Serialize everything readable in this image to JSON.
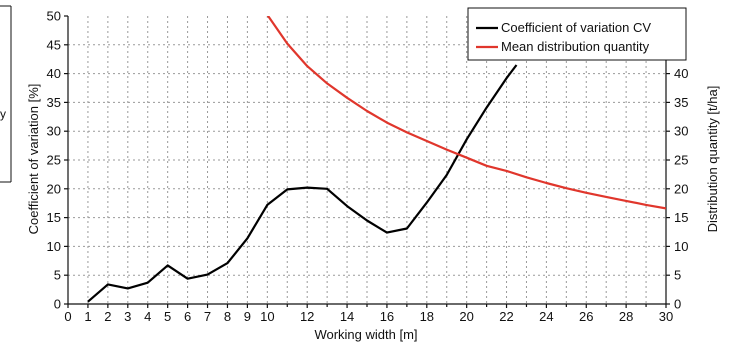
{
  "chart_data": {
    "type": "line",
    "title": "",
    "xlabel": "Working width [m]",
    "ylabel": "Coefficient of variation [%]",
    "y2label": "Distribution quantity [t/ha]",
    "xlim": [
      0,
      30
    ],
    "ylim": [
      0,
      50
    ],
    "y2lim": [
      0,
      50
    ],
    "grid": true,
    "legend_position": "top-right",
    "x_tick_labels": [
      "0",
      "1",
      "2",
      "3",
      "4",
      "5",
      "6",
      "7",
      "8",
      "9",
      "10",
      "12",
      "14",
      "16",
      "18",
      "20",
      "22",
      "24",
      "26",
      "28",
      "30"
    ],
    "x_tick_values": [
      0,
      1,
      2,
      3,
      4,
      5,
      6,
      7,
      8,
      9,
      10,
      12,
      14,
      16,
      18,
      20,
      22,
      24,
      26,
      28,
      30
    ],
    "y_tick_labels": [
      "0",
      "5",
      "10",
      "15",
      "20",
      "25",
      "30",
      "35",
      "40",
      "45",
      "50"
    ],
    "y_tick_values": [
      0,
      5,
      10,
      15,
      20,
      25,
      30,
      35,
      40,
      45,
      50
    ],
    "y2_tick_labels": [
      "0",
      "5",
      "10",
      "15",
      "20",
      "25",
      "30",
      "35",
      "40"
    ],
    "y2_tick_values": [
      0,
      5,
      10,
      15,
      20,
      25,
      30,
      35,
      40
    ],
    "series": [
      {
        "name": "Coefficient of variation CV",
        "color": "#000000",
        "axis": "left",
        "x": [
          1,
          2,
          3,
          4,
          5,
          6,
          7,
          8,
          9,
          10,
          11,
          12,
          13,
          14,
          15,
          16,
          17,
          18,
          19,
          20,
          21,
          22,
          22.5
        ],
        "y": [
          0.4,
          3.4,
          2.7,
          3.7,
          6.7,
          4.4,
          5.1,
          7.1,
          11.4,
          17.2,
          19.9,
          20.2,
          20.0,
          17.0,
          14.5,
          12.4,
          13.1,
          17.6,
          22.4,
          28.6,
          34.1,
          39.2,
          41.5
        ]
      },
      {
        "name": "Mean distribution quantity",
        "color": "#e0362c",
        "axis": "right",
        "x": [
          10,
          11,
          12,
          13,
          14,
          15,
          16,
          17,
          18,
          19,
          20,
          21,
          22,
          23,
          24,
          25,
          26,
          27,
          28,
          29,
          30
        ],
        "y": [
          50.2,
          45.2,
          41.3,
          38.3,
          35.8,
          33.5,
          31.5,
          29.8,
          28.3,
          26.8,
          25.4,
          24.0,
          23.1,
          22.0,
          21.0,
          20.1,
          19.3,
          18.6,
          17.9,
          17.2,
          16.6
        ]
      }
    ],
    "side_label_fragment": "y"
  }
}
